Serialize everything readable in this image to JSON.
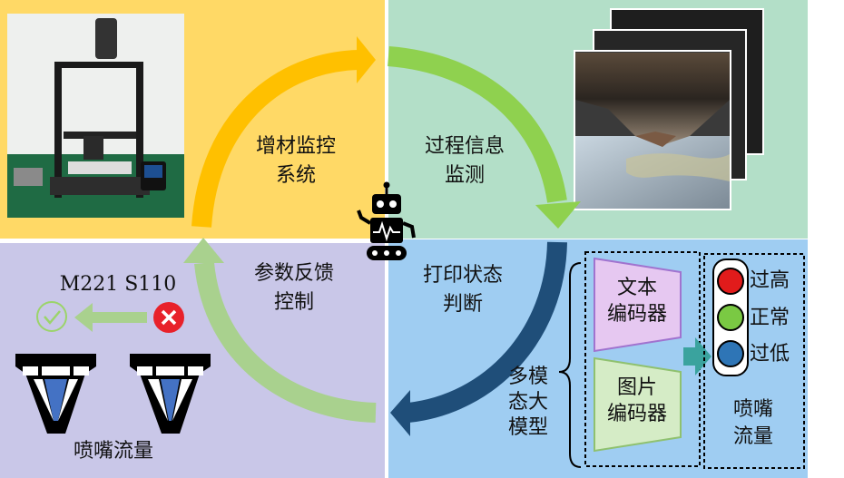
{
  "cycle": {
    "stage_monitor_system": "增材监控\n系统",
    "stage_process_info": "过程信息\n监测",
    "stage_print_state": "打印状态\n判断",
    "stage_param_feedback": "参数反馈\n控制"
  },
  "multimodal": {
    "group_label": "多模\n态大\n模型",
    "text_encoder": "文本\n编码器",
    "image_encoder": "图片\n编码器"
  },
  "traffic_light": {
    "high": "过高",
    "normal": "正常",
    "low": "过低",
    "caption": "喷嘴\n流量",
    "colors": {
      "high": "#e11b1b",
      "normal": "#7ac943",
      "low": "#2e75b6"
    }
  },
  "feedback": {
    "params": "M221 S110",
    "nozzle_caption": "喷嘴流量"
  },
  "colors": {
    "arrow_orange": "#ffc000",
    "arrow_green": "#8fd14f",
    "arrow_navy": "#1f4e79",
    "arrow_light_green": "#a9d18e"
  }
}
